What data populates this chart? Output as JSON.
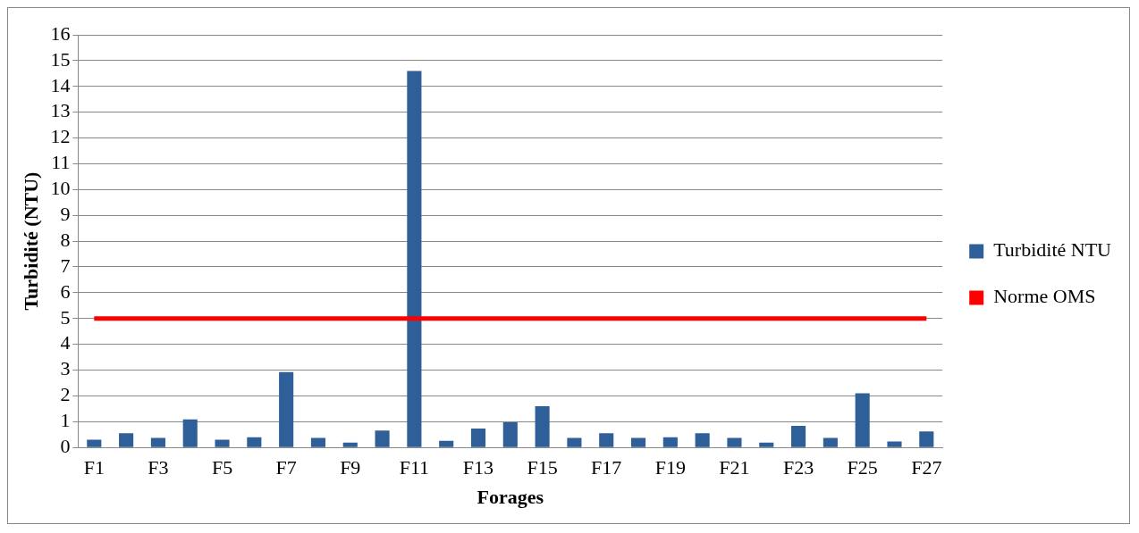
{
  "chart_data": {
    "type": "bar",
    "xlabel": "Forages",
    "ylabel": "Turbidité (NTU)",
    "categories": [
      "F1",
      null,
      "F3",
      null,
      "F5",
      null,
      "F7",
      null,
      "F9",
      null,
      "F11",
      null,
      "F13",
      null,
      "F15",
      null,
      "F17",
      null,
      "F19",
      null,
      "F21",
      null,
      "F23",
      null,
      "F25",
      null,
      "F27"
    ],
    "series": [
      {
        "name": "Turbidité NTU",
        "color": "#2f5f98",
        "values": [
          0.3,
          0.55,
          0.37,
          1.09,
          0.3,
          0.4,
          2.92,
          0.37,
          0.19,
          0.66,
          14.6,
          0.26,
          0.73,
          0.98,
          1.6,
          0.37,
          0.55,
          0.37,
          0.4,
          0.55,
          0.37,
          0.19,
          0.84,
          0.37,
          2.1,
          0.23,
          0.62
        ]
      },
      {
        "name": "Norme OMS",
        "type": "line",
        "color": "#ff0000",
        "values": [
          5,
          5,
          5,
          5,
          5,
          5,
          5,
          5,
          5,
          5,
          5,
          5,
          5,
          5,
          5,
          5,
          5,
          5,
          5,
          5,
          5,
          5,
          5,
          5,
          5,
          5,
          5
        ]
      }
    ],
    "ylim": [
      0,
      16
    ],
    "yticks": [
      0,
      1,
      2,
      3,
      4,
      5,
      6,
      7,
      8,
      9,
      10,
      11,
      12,
      13,
      14,
      15,
      16
    ],
    "grid": "y",
    "legend": "right",
    "marker": "none"
  }
}
